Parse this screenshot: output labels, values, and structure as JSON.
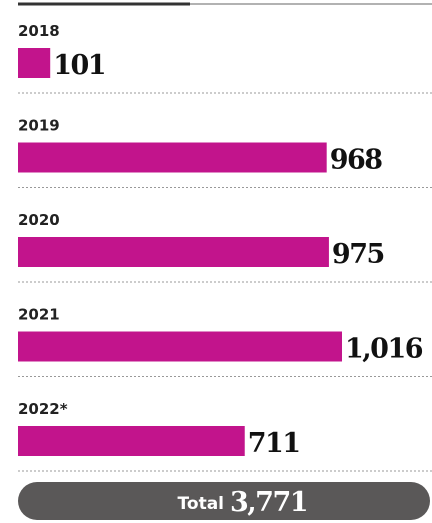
{
  "chart_data": {
    "type": "bar",
    "orientation": "horizontal",
    "categories": [
      "2018",
      "2019",
      "2020",
      "2021",
      "2022*"
    ],
    "values": [
      101,
      968,
      975,
      1016,
      711
    ],
    "value_labels": [
      "101",
      "968",
      "975",
      "1,016",
      "711"
    ],
    "color": "#c2148c",
    "total_label": "Total",
    "total": "3,771"
  }
}
